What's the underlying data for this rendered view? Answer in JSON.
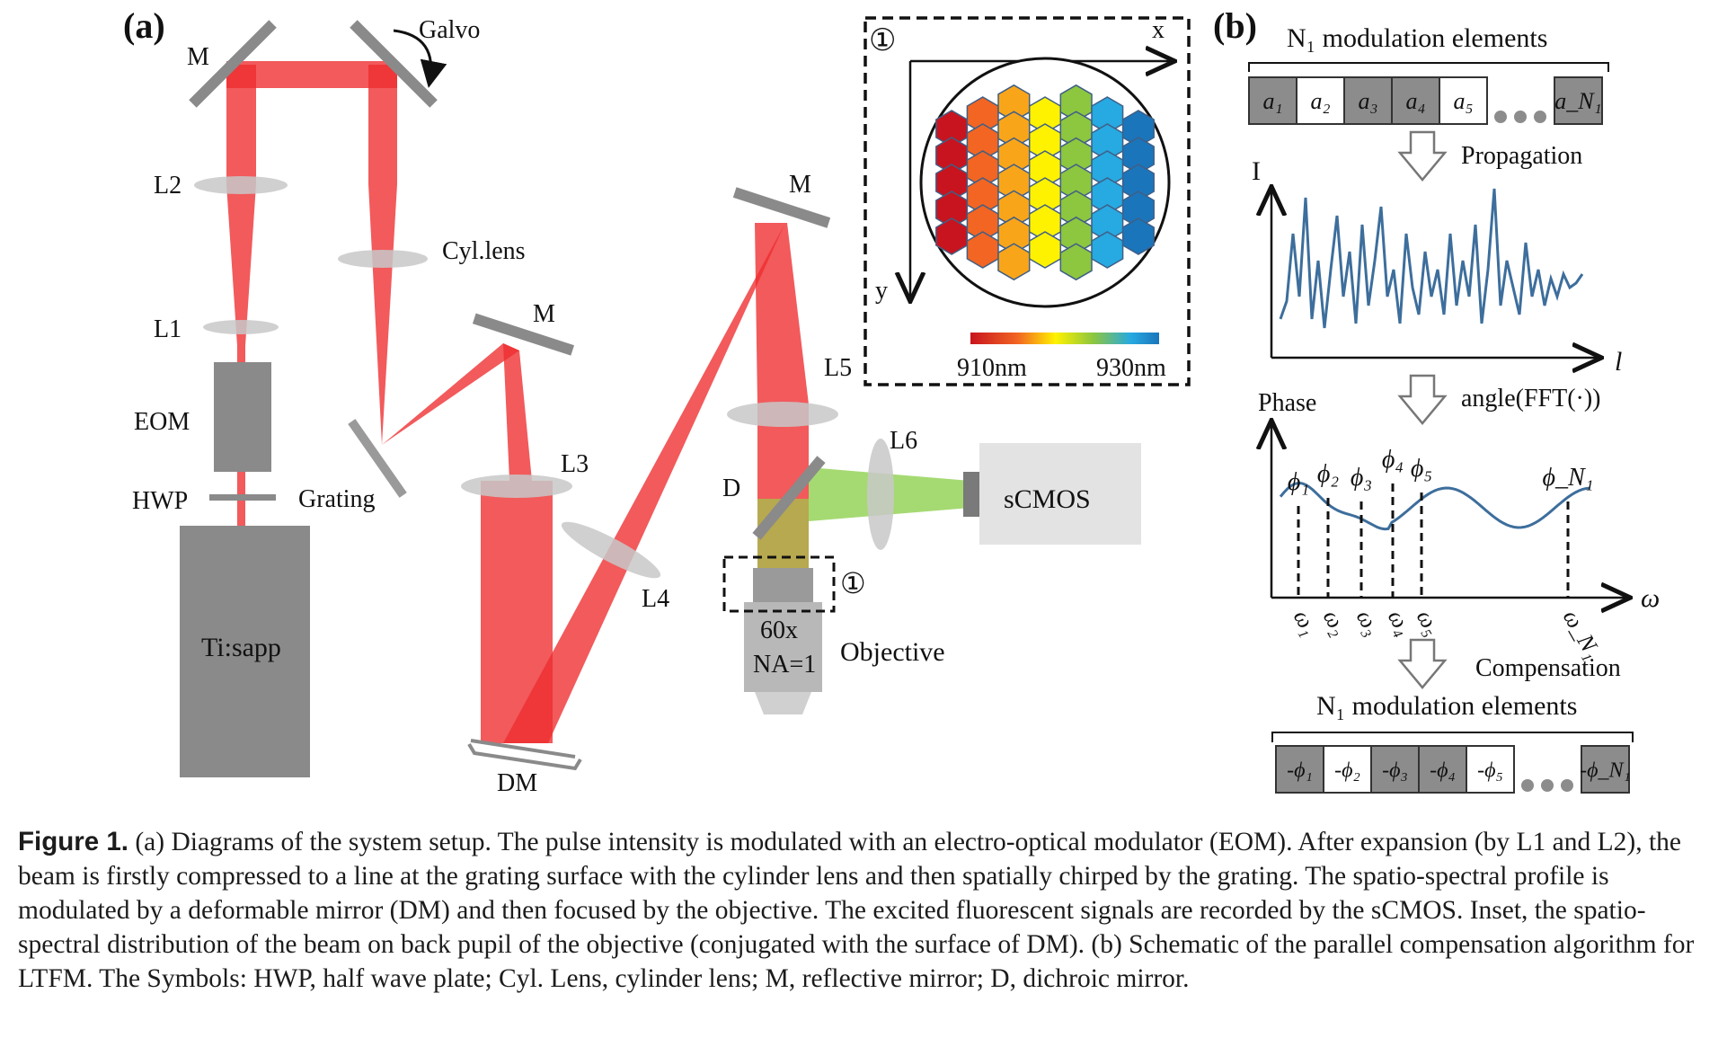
{
  "panels": {
    "a": "(a)",
    "b": "(b)"
  },
  "setup": {
    "mirror": "M",
    "galvo": "Galvo",
    "l2": "L2",
    "cyl_lens": "Cyl.lens",
    "l1": "L1",
    "eom": "EOM",
    "hwp": "HWP",
    "grating": "Grating",
    "laser": "Ti:sapp",
    "l3": "L3",
    "l4": "L4",
    "dm": "DM",
    "l5": "L5",
    "l6": "L6",
    "dichroic": "D",
    "camera": "sCMOS",
    "objective_mag": "60x",
    "objective_na": "NA=1",
    "objective": "Objective",
    "marker": "①"
  },
  "inset": {
    "marker": "①",
    "x_axis": "x",
    "y_axis": "y",
    "wl_min": "910nm",
    "wl_max": "930nm",
    "column_colors": [
      "#c8141e",
      "#f26522",
      "#f9a51a",
      "#fff200",
      "#8dc63f",
      "#27a9e1",
      "#1b75bb"
    ]
  },
  "algorithm": {
    "title_top": "N₁ modulation elements",
    "elements_top": [
      "a₁",
      "a₂",
      "a₃",
      "a₄",
      "a₅",
      "a_N₁"
    ],
    "element_shading": [
      "#8c8c8c",
      "#ffffff",
      "#8c8c8c",
      "#8c8c8c",
      "#ffffff",
      "#8c8c8c"
    ],
    "step1": "Propagation",
    "intensity_axis": "I",
    "position_axis": "l",
    "step2": "angle(FFT(·))",
    "phase_axis": "Phase",
    "freq_axis": "ω",
    "phases": [
      "ϕ₁",
      "ϕ₂",
      "ϕ₃",
      "ϕ₄",
      "ϕ₅",
      "ϕ_N₁"
    ],
    "freqs": [
      "ω₁",
      "ω₂",
      "ω₃",
      "ω₄",
      "ω₅",
      "ω_N₁"
    ],
    "step3": "Compensation",
    "title_bottom": "N₁ modulation elements",
    "elements_bottom": [
      "-ϕ₁",
      "-ϕ₂",
      "-ϕ₃",
      "-ϕ₄",
      "-ϕ₅",
      "-ϕ_N₁"
    ],
    "line_color": "#3d6e9c"
  },
  "caption": {
    "head": "Figure 1.",
    "body": " (a) Diagrams of the system setup. The pulse intensity is modulated with an electro-optical modulator (EOM). After expansion (by L1 and L2), the beam is firstly compressed to a line at the grating surface with the cylinder lens and then spatially chirped by the grating. The spatio-spectral profile is modulated by a deformable mirror (DM) and then focused by the objective. The excited fluorescent signals are recorded by the sCMOS. Inset, the spatio-spectral distribution of the beam on back pupil of the objective (conjugated with the surface of DM). (b) Schematic of the parallel compensation algorithm for LTFM. The Symbols: HWP, half wave plate; Cyl. Lens, cylinder lens; M, reflective mirror; D, dichroic mirror."
  }
}
